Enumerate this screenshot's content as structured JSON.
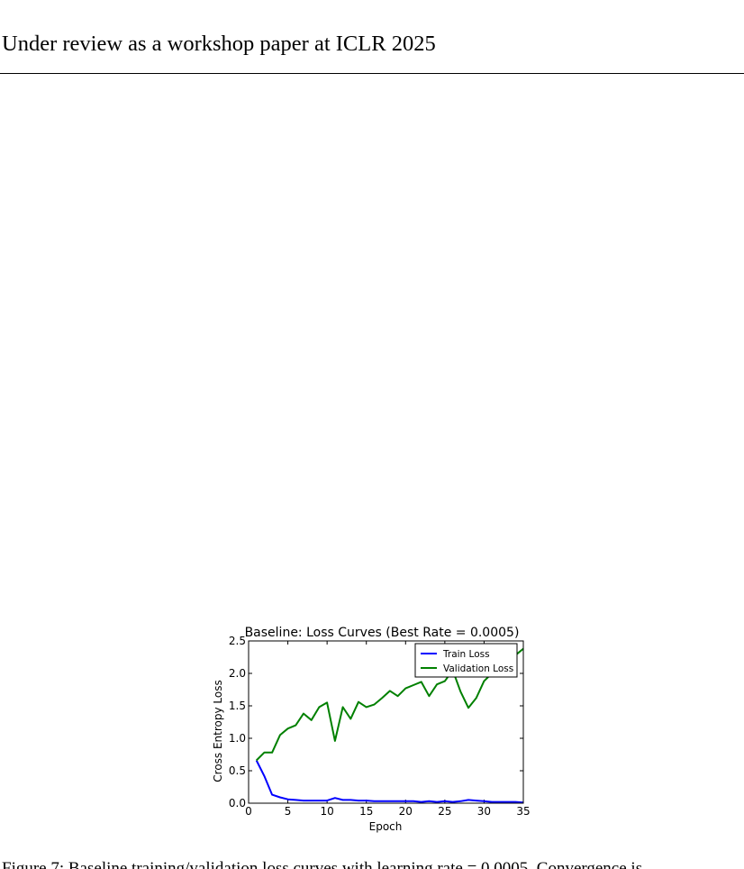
{
  "header": {
    "text": "Under review as a workshop paper at ICLR 2025"
  },
  "figure": {
    "chart_data": {
      "type": "line",
      "title": "Baseline: Loss Curves (Best Rate = 0.0005)",
      "xlabel": "Epoch",
      "ylabel": "Cross Entropy Loss",
      "xlim": [
        0,
        35
      ],
      "ylim": [
        0,
        2.5
      ],
      "xticks": [
        0,
        5,
        10,
        15,
        20,
        25,
        30,
        35
      ],
      "yticks": [
        0.0,
        0.5,
        1.0,
        1.5,
        2.0,
        2.5
      ],
      "legend_position": "top-right",
      "grid": false,
      "series": [
        {
          "name": "Train Loss",
          "color": "#0000ff",
          "x": [
            1,
            2,
            3,
            4,
            5,
            6,
            7,
            8,
            9,
            10,
            11,
            12,
            13,
            14,
            15,
            16,
            17,
            18,
            19,
            20,
            21,
            22,
            23,
            24,
            25,
            26,
            27,
            28,
            29,
            30,
            31,
            32,
            33,
            34,
            35
          ],
          "y": [
            0.66,
            0.42,
            0.13,
            0.09,
            0.06,
            0.05,
            0.04,
            0.04,
            0.04,
            0.04,
            0.08,
            0.05,
            0.05,
            0.04,
            0.04,
            0.03,
            0.03,
            0.03,
            0.03,
            0.03,
            0.03,
            0.02,
            0.03,
            0.02,
            0.03,
            0.02,
            0.03,
            0.05,
            0.04,
            0.03,
            0.02,
            0.02,
            0.02,
            0.02,
            0.01
          ]
        },
        {
          "name": "Validation Loss",
          "color": "#008000",
          "x": [
            1,
            2,
            3,
            4,
            5,
            6,
            7,
            8,
            9,
            10,
            11,
            12,
            13,
            14,
            15,
            16,
            17,
            18,
            19,
            20,
            21,
            22,
            23,
            24,
            25,
            26,
            27,
            28,
            29,
            30,
            31,
            32,
            33,
            34,
            35
          ],
          "y": [
            0.66,
            0.78,
            0.78,
            1.05,
            1.15,
            1.2,
            1.38,
            1.28,
            1.48,
            1.55,
            0.96,
            1.48,
            1.3,
            1.56,
            1.48,
            1.52,
            1.62,
            1.73,
            1.65,
            1.77,
            1.82,
            1.87,
            1.65,
            1.83,
            1.88,
            2.05,
            1.72,
            1.47,
            1.62,
            1.88,
            2.0,
            2.2,
            2.3,
            2.28,
            2.38
          ]
        }
      ]
    }
  },
  "caption": {
    "text": "Figure 7: Baseline training/validation loss curves with learning rate = 0.0005. Convergence is"
  }
}
